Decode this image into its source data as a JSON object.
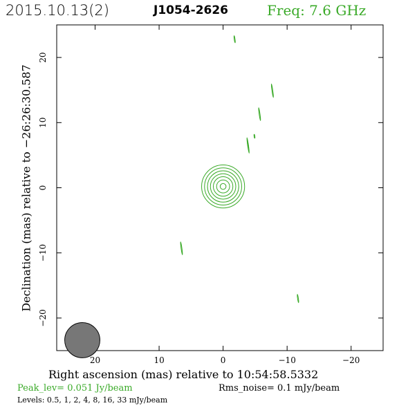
{
  "header": {
    "date": "2015.10.13(2)",
    "source": "J1054-2626",
    "freq": "Freq: 7.6 GHz"
  },
  "axis": {
    "xlabel": "Right ascension (mas) relative to 10:54:58.5332",
    "ylabel": "Declination (mas) relative to −26:26:30.587"
  },
  "footer": {
    "peak": "Peak_lev=  0.051 Jy/beam",
    "rms": "Rms_noise=   0.1 mJy/beam",
    "levels": "Levels: 0.5,   1,   2,   4,   8,  16,  33 mJy/beam"
  },
  "colors": {
    "contour": "#3aaa28",
    "beam": "#777777",
    "accent": "#3aaa28"
  },
  "chart_data": {
    "type": "contour",
    "xlim": [
      26,
      -25
    ],
    "ylim": [
      -25,
      25
    ],
    "xticks": [
      20,
      10,
      0,
      -10,
      -20
    ],
    "yticks": [
      20,
      10,
      0,
      -10,
      -20
    ],
    "xtick_labels": [
      "20",
      "10",
      "0",
      "−10",
      "−20"
    ],
    "ytick_labels": [
      "20",
      "10",
      "0",
      "−10",
      "−20"
    ],
    "levels_mJy": [
      0.5,
      1,
      2,
      4,
      8,
      16,
      33
    ],
    "peak_Jy_per_beam": 0.051,
    "rms_mJy_per_beam": 0.1,
    "core": {
      "x": 0.0,
      "y": 0.2,
      "rx": [
        1.35,
        1.15,
        0.95,
        0.78,
        0.6,
        0.42,
        0.22
      ],
      "ry": [
        3.3,
        2.85,
        2.4,
        1.95,
        1.5,
        1.0,
        0.45
      ]
    },
    "components": [
      {
        "x": -1.8,
        "y": 22.8,
        "rx": 0.2,
        "ry": 0.55
      },
      {
        "x": -7.7,
        "y": 14.9,
        "rx": 0.45,
        "ry": 1.05
      },
      {
        "x": -5.7,
        "y": 11.3,
        "rx": 0.35,
        "ry": 1.0
      },
      {
        "x": -4.9,
        "y": 7.9,
        "rx": 0.05,
        "ry": 0.3
      },
      {
        "x": -3.9,
        "y": 6.5,
        "rx": 0.45,
        "ry": 1.2
      },
      {
        "x": -3.9,
        "y": 6.5,
        "rx": 0.12,
        "ry": 0.45
      },
      {
        "x": 6.5,
        "y": -9.3,
        "rx": 0.6,
        "ry": 1.0
      },
      {
        "x": -11.7,
        "y": -17.0,
        "rx": 0.25,
        "ry": 0.65
      }
    ],
    "beam": {
      "x": 22.0,
      "y": -23.4,
      "major": 2.7,
      "minor": 1.0,
      "pa_deg": 0
    }
  }
}
